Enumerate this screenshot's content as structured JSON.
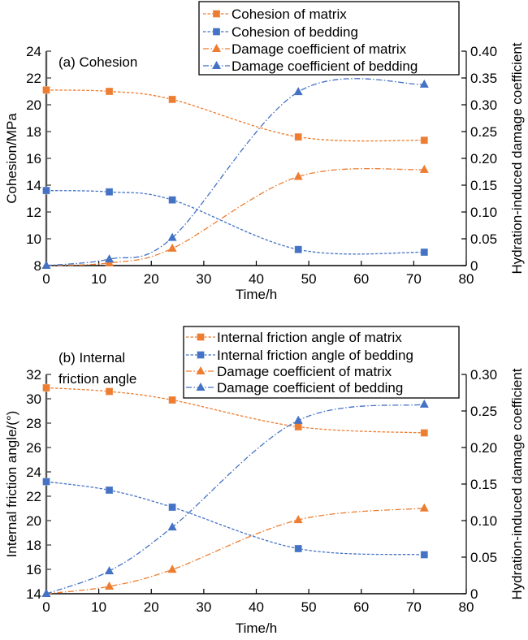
{
  "colors": {
    "orange": "#ED7D31",
    "blue": "#4472C4",
    "left_axis": "#595959",
    "axis": "#000000"
  },
  "chart_data": [
    {
      "type": "line",
      "panel_label_lines": [
        "(a) Cohesion"
      ],
      "xlabel": "Time/h",
      "ylabel": "Cohesion/MPa",
      "y2label": "Hydration-induced damage coefficient",
      "xlim": [
        0,
        80
      ],
      "xticks": [
        0,
        10,
        20,
        30,
        40,
        50,
        60,
        70,
        80
      ],
      "ylim": [
        8,
        24
      ],
      "yticks": [
        8,
        10,
        12,
        14,
        16,
        18,
        20,
        22,
        24
      ],
      "y2lim": [
        0,
        0.4
      ],
      "y2ticks": [
        0,
        0.05,
        0.1,
        0.15,
        0.2,
        0.25,
        0.3,
        0.35,
        0.4
      ],
      "y2tick_labels": [
        "0",
        "0.05",
        "0.10",
        "0.15",
        "0.20",
        "0.25",
        "0.30",
        "0.35",
        "0.40"
      ],
      "grid": false,
      "legend_position": "top-right",
      "x": [
        0,
        12,
        24,
        48,
        72
      ],
      "series": [
        {
          "name": "Cohesion of matrix",
          "axis": "left",
          "color": "#ED7D31",
          "marker": "square",
          "line_style": "dashed",
          "values": [
            21.1,
            21.0,
            20.4,
            17.6,
            17.35
          ]
        },
        {
          "name": "Cohesion of bedding",
          "axis": "left",
          "color": "#4472C4",
          "marker": "square",
          "line_style": "dashed",
          "values": [
            13.6,
            13.5,
            12.9,
            9.2,
            9.0
          ]
        },
        {
          "name": "Damage coefficient of matrix",
          "axis": "right",
          "color": "#ED7D31",
          "marker": "triangle",
          "line_style": "dash-dot",
          "values": [
            0,
            0.005,
            0.032,
            0.166,
            0.179
          ]
        },
        {
          "name": "Damage coefficient of bedding",
          "axis": "right",
          "color": "#4472C4",
          "marker": "triangle",
          "line_style": "dash-dot",
          "values": [
            0,
            0.012,
            0.052,
            0.324,
            0.338
          ]
        }
      ]
    },
    {
      "type": "line",
      "panel_label_lines": [
        "(b) Internal",
        "friction angle"
      ],
      "xlabel": "Time/h",
      "ylabel": "Internal friction angle/(°)",
      "y2label": "Hydration-induced damage coefficient",
      "xlim": [
        0,
        80
      ],
      "xticks": [
        0,
        10,
        20,
        30,
        40,
        50,
        60,
        70,
        80
      ],
      "ylim": [
        14,
        32
      ],
      "yticks": [
        14,
        16,
        18,
        20,
        22,
        24,
        26,
        28,
        30,
        32
      ],
      "y2lim": [
        0,
        0.3
      ],
      "y2ticks": [
        0,
        0.05,
        0.1,
        0.15,
        0.2,
        0.25,
        0.3
      ],
      "y2tick_labels": [
        "0",
        "0.05",
        "0.10",
        "0.15",
        "0.20",
        "0.25",
        "0.30"
      ],
      "grid": false,
      "legend_position": "top-right",
      "x": [
        0,
        12,
        24,
        48,
        72
      ],
      "series": [
        {
          "name": "Internal friction angle of matrix",
          "axis": "left",
          "color": "#ED7D31",
          "marker": "square",
          "line_style": "dashed",
          "values": [
            30.9,
            30.6,
            29.9,
            27.7,
            27.2
          ]
        },
        {
          "name": "Internal friction angle of bedding",
          "axis": "left",
          "color": "#4472C4",
          "marker": "square",
          "line_style": "dashed",
          "values": [
            23.2,
            22.5,
            21.1,
            17.7,
            17.2
          ]
        },
        {
          "name": "Damage coefficient of matrix",
          "axis": "right",
          "color": "#ED7D31",
          "marker": "triangle",
          "line_style": "dash-dot",
          "values": [
            0,
            0.01,
            0.033,
            0.101,
            0.117
          ]
        },
        {
          "name": "Damage coefficient of bedding",
          "axis": "right",
          "color": "#4472C4",
          "marker": "triangle",
          "line_style": "dash-dot",
          "values": [
            0,
            0.031,
            0.091,
            0.237,
            0.259
          ]
        }
      ]
    }
  ]
}
